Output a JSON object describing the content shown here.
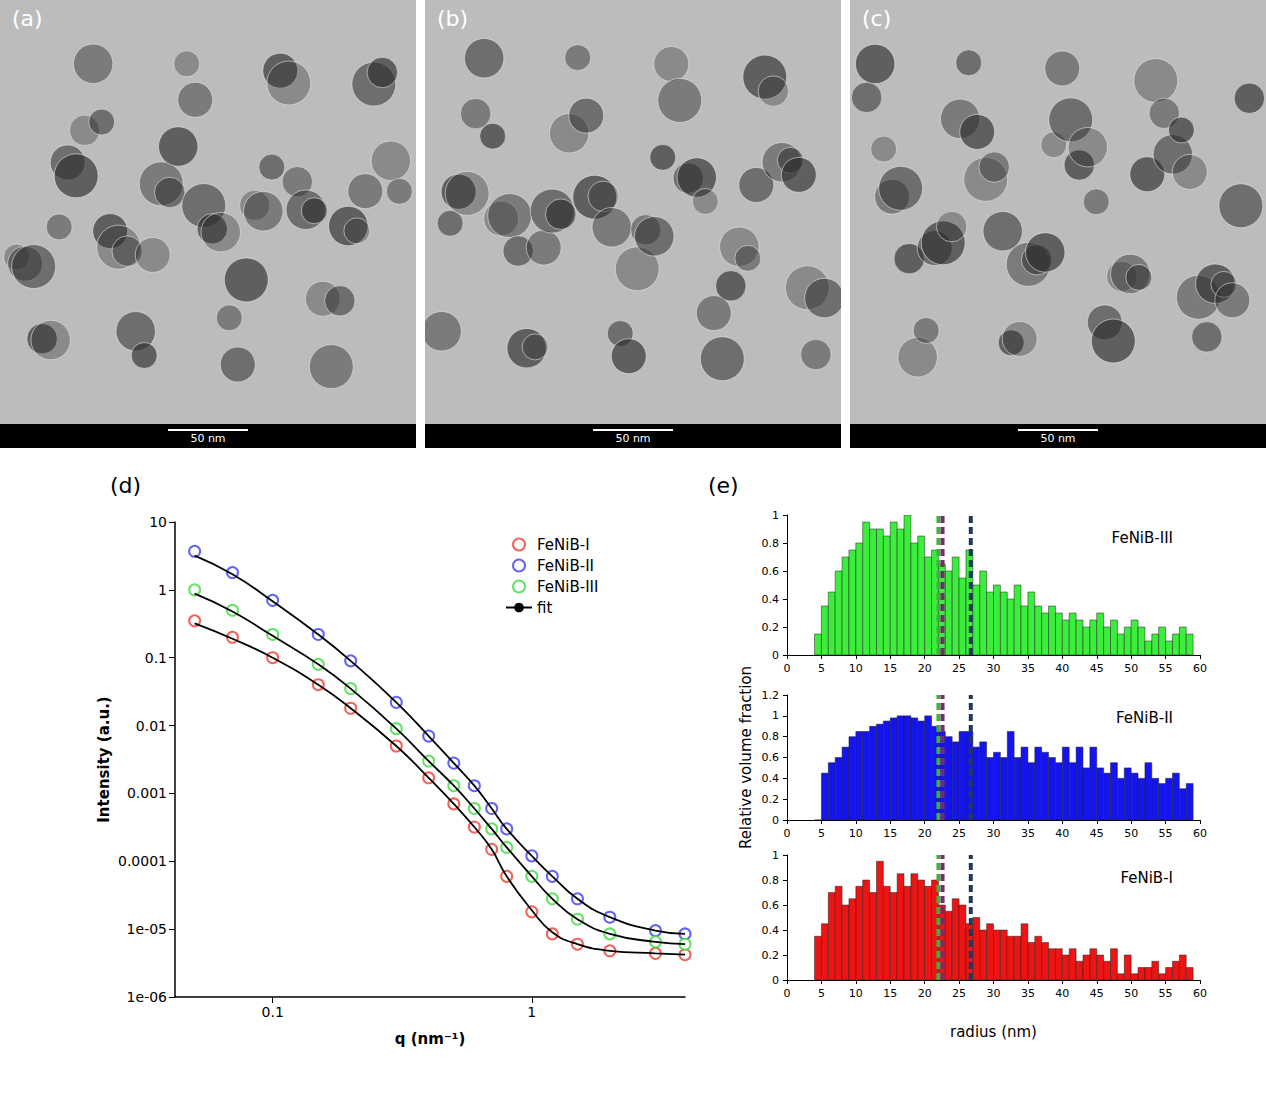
{
  "images": [
    {
      "label": "(a)",
      "scale_bar": "50 nm"
    },
    {
      "label": "(b)",
      "scale_bar": "50 nm"
    },
    {
      "label": "(c)",
      "scale_bar": "50 nm"
    }
  ],
  "chart_data": [
    {
      "type": "line",
      "panel_label": "(d)",
      "xlabel": "q (nm⁻¹)",
      "ylabel": "Intensity (a.u.)",
      "log": true,
      "grid": false,
      "legend": "upper right",
      "xlim": [
        0.042,
        3.9
      ],
      "xticks": [
        0.1,
        1
      ],
      "ylim": [
        1e-06,
        10
      ],
      "yticks": [
        {
          "value": 1e-06,
          "label": "1e-06"
        },
        {
          "value": 1e-05,
          "label": "1e-05"
        },
        0.0001,
        0.001,
        0.01,
        0.1,
        1,
        10
      ],
      "x": [
        0.05,
        0.07,
        0.1,
        0.15,
        0.2,
        0.3,
        0.4,
        0.5,
        0.6,
        0.7,
        0.8,
        1,
        1.2,
        1.5,
        2,
        3,
        3.9
      ],
      "series": [
        {
          "name": "FeNiB-I",
          "type": "scatter",
          "marker": "open_circle",
          "color": "#f03c32",
          "values": [
            0.35,
            0.2,
            0.1,
            0.04,
            0.018,
            0.005,
            0.0017,
            0.0007,
            0.00032,
            0.00015,
            6e-05,
            1.8e-05,
            8.5e-06,
            6e-06,
            4.8e-06,
            4.4e-06,
            4.2e-06
          ]
        },
        {
          "name": "FeNiB-II",
          "type": "scatter",
          "marker": "open_circle",
          "color": "#3c3cf5",
          "values": [
            3.7,
            1.8,
            0.7,
            0.22,
            0.09,
            0.022,
            0.007,
            0.0028,
            0.0013,
            0.0006,
            0.0003,
            0.00012,
            6e-05,
            2.8e-05,
            1.5e-05,
            9.5e-06,
            8.5e-06
          ]
        },
        {
          "name": "FeNiB-III",
          "type": "scatter",
          "marker": "open_circle",
          "color": "#3cdc3c",
          "values": [
            1.0,
            0.5,
            0.22,
            0.08,
            0.035,
            0.009,
            0.003,
            0.0013,
            0.0006,
            0.0003,
            0.00016,
            6e-05,
            2.8e-05,
            1.4e-05,
            8.5e-06,
            6.5e-06,
            6e-06
          ]
        },
        {
          "name": "fit",
          "type": "line",
          "line_style": "solid",
          "color": "#000000",
          "values": [
            0.32,
            0.19,
            0.1,
            0.04,
            0.018,
            0.005,
            0.0017,
            0.0007,
            0.00032,
            0.00015,
            6e-05,
            1.9e-05,
            9e-06,
            6e-06,
            4.8e-06,
            4.4e-06,
            4.2e-06
          ]
        },
        {
          "name": "fit",
          "type": "line",
          "line_style": "solid",
          "color": "#000000",
          "values": [
            3.2,
            1.7,
            0.68,
            0.22,
            0.09,
            0.022,
            0.007,
            0.0028,
            0.0013,
            0.0006,
            0.0003,
            0.00012,
            6e-05,
            2.8e-05,
            1.5e-05,
            9.5e-06,
            8.5e-06
          ]
        },
        {
          "name": "fit",
          "type": "line",
          "line_style": "solid",
          "color": "#000000",
          "values": [
            0.88,
            0.48,
            0.21,
            0.08,
            0.035,
            0.009,
            0.003,
            0.0013,
            0.0006,
            0.0003,
            0.00016,
            6e-05,
            2.8e-05,
            1.4e-05,
            8.5e-06,
            6.5e-06,
            6e-06
          ]
        }
      ]
    },
    {
      "type": "histogram",
      "panel_label": "(e)",
      "xlabel": "radius (nm)",
      "ylabel": "Relative volume fraction",
      "xlim": [
        0,
        60
      ],
      "xticks": [
        0,
        5,
        10,
        15,
        20,
        25,
        30,
        35,
        40,
        45,
        50,
        55,
        60
      ],
      "bins": [
        4,
        5,
        6,
        7,
        8,
        9,
        10,
        11,
        12,
        13,
        14,
        15,
        16,
        17,
        18,
        19,
        20,
        21,
        22,
        23,
        24,
        25,
        26,
        27,
        28,
        29,
        30,
        31,
        32,
        33,
        34,
        35,
        36,
        37,
        38,
        39,
        40,
        41,
        42,
        43,
        44,
        45,
        46,
        47,
        48,
        49,
        50,
        51,
        52,
        53,
        54,
        55,
        56,
        57,
        58,
        59
      ],
      "vlines": [
        {
          "value": 22,
          "color": "#3cb43c"
        },
        {
          "value": 22.6,
          "color": "#7a2a6e"
        },
        {
          "value": 26.7,
          "color": "#1e3a5a"
        }
      ],
      "series": [
        {
          "name": "FeNiB-III",
          "color": "#3cee3c",
          "ylim": [
            0,
            1
          ],
          "yticks": [
            0,
            0.2,
            0.4,
            0.6,
            0.8,
            1
          ],
          "values": [
            0.15,
            0.35,
            0.45,
            0.6,
            0.7,
            0.75,
            0.8,
            0.95,
            0.9,
            0.9,
            0.85,
            0.95,
            0.9,
            1.0,
            0.8,
            0.85,
            0.7,
            0.75,
            0.65,
            0.6,
            0.7,
            0.55,
            0.75,
            0.5,
            0.6,
            0.45,
            0.5,
            0.45,
            0.4,
            0.5,
            0.35,
            0.45,
            0.35,
            0.3,
            0.35,
            0.3,
            0.25,
            0.3,
            0.25,
            0.2,
            0.25,
            0.3,
            0.2,
            0.25,
            0.15,
            0.2,
            0.25,
            0.2,
            0.1,
            0.15,
            0.2,
            0.1,
            0.15,
            0.2,
            0.15
          ]
        },
        {
          "name": "FeNiB-II",
          "color": "#1414f0",
          "ylim": [
            0,
            1.2
          ],
          "yticks": [
            0,
            0.2,
            0.4,
            0.6,
            0.8,
            1,
            1.2
          ],
          "values": [
            0,
            0.45,
            0.55,
            0.6,
            0.7,
            0.8,
            0.85,
            0.85,
            0.9,
            0.92,
            0.95,
            0.98,
            1.0,
            1.0,
            0.98,
            0.95,
            1.0,
            0.9,
            0.85,
            0.8,
            0.75,
            0.85,
            0.85,
            0.7,
            0.75,
            0.6,
            0.65,
            0.6,
            0.85,
            0.6,
            0.7,
            0.55,
            0.7,
            0.65,
            0.6,
            0.55,
            0.7,
            0.55,
            0.7,
            0.5,
            0.7,
            0.5,
            0.45,
            0.55,
            0.4,
            0.5,
            0.45,
            0.4,
            0.55,
            0.4,
            0.35,
            0.4,
            0.45,
            0.3,
            0.35
          ]
        },
        {
          "name": "FeNiB-I",
          "color": "#ee1414",
          "ylim": [
            0,
            1
          ],
          "yticks": [
            0,
            0.2,
            0.4,
            0.6,
            0.8,
            1
          ],
          "values": [
            0.35,
            0.45,
            0.7,
            0.75,
            0.6,
            0.65,
            0.75,
            0.8,
            0.7,
            0.95,
            0.75,
            0.7,
            0.85,
            0.75,
            0.85,
            0.8,
            0.75,
            0.8,
            0.6,
            0.55,
            0.65,
            0.6,
            0.45,
            0.5,
            0.4,
            0.45,
            0.4,
            0.4,
            0.35,
            0.35,
            0.45,
            0.3,
            0.35,
            0.3,
            0.25,
            0.25,
            0.2,
            0.25,
            0.15,
            0.2,
            0.25,
            0.2,
            0.15,
            0.25,
            0.05,
            0.2,
            0.05,
            0.1,
            0.1,
            0.15,
            0.05,
            0.1,
            0.15,
            0.2,
            0.1
          ]
        }
      ]
    }
  ]
}
